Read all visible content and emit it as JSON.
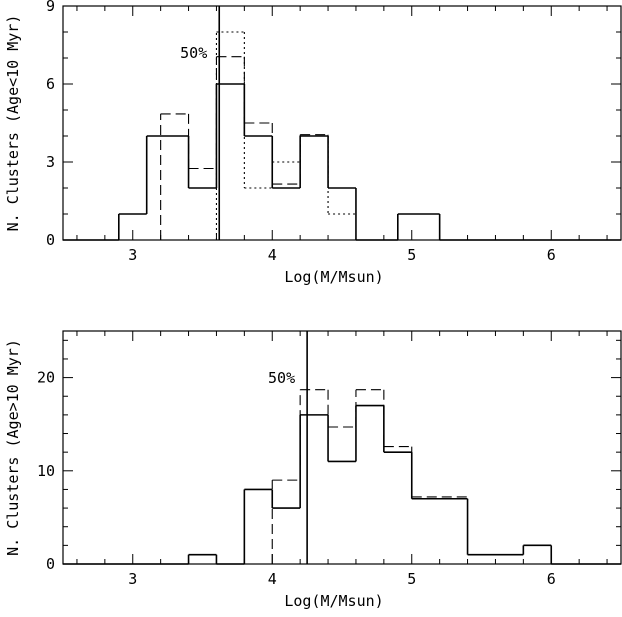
{
  "chart_data": [
    {
      "type": "histogram",
      "xlabel": "Log(M/Msun)",
      "ylabel": "N. Clusters (Age<10 Myr)",
      "xlim": [
        2.5,
        6.5
      ],
      "ylim": [
        0,
        9
      ],
      "x_ticks": [
        3,
        4,
        5,
        6
      ],
      "y_ticks": [
        0,
        3,
        6,
        9
      ],
      "bin_width": 0.2,
      "series": [
        {
          "style": "solid",
          "bins": [
            [
              2.5,
              2.9,
              0
            ],
            [
              2.9,
              3.1,
              1
            ],
            [
              3.1,
              3.4,
              4
            ],
            [
              3.4,
              3.6,
              2
            ],
            [
              3.6,
              3.8,
              6
            ],
            [
              3.8,
              4.0,
              4
            ],
            [
              4.0,
              4.2,
              2
            ],
            [
              4.2,
              4.4,
              4
            ],
            [
              4.4,
              4.6,
              2
            ],
            [
              4.6,
              4.9,
              0
            ],
            [
              4.9,
              5.2,
              1
            ],
            [
              5.2,
              6.5,
              0
            ]
          ]
        },
        {
          "style": "dashed",
          "bins": [
            [
              3.2,
              3.4,
              4.85
            ],
            [
              3.4,
              3.6,
              2.75
            ],
            [
              3.6,
              3.8,
              7.05
            ],
            [
              3.8,
              4.0,
              4.5
            ],
            [
              4.0,
              4.2,
              2.15
            ],
            [
              4.2,
              4.4,
              4.05
            ],
            [
              4.4,
              4.6,
              2.0
            ]
          ]
        },
        {
          "style": "dotted",
          "bins": [
            [
              3.6,
              3.8,
              8.0
            ],
            [
              3.8,
              4.0,
              2.0
            ],
            [
              4.0,
              4.2,
              3.0
            ],
            [
              4.2,
              4.4,
              4.0
            ],
            [
              4.4,
              4.6,
              1.0
            ]
          ]
        }
      ],
      "vline": {
        "x": 3.62,
        "label": "50%"
      }
    },
    {
      "type": "histogram",
      "xlabel": "Log(M/Msun)",
      "ylabel": "N. Clusters (Age>10 Myr)",
      "xlim": [
        2.5,
        6.5
      ],
      "ylim": [
        0,
        25
      ],
      "x_ticks": [
        3,
        4,
        5,
        6
      ],
      "y_ticks": [
        0,
        10,
        20
      ],
      "bin_width": 0.2,
      "series": [
        {
          "style": "solid",
          "bins": [
            [
              2.5,
              3.4,
              0
            ],
            [
              3.4,
              3.6,
              1
            ],
            [
              3.6,
              3.8,
              0
            ],
            [
              3.8,
              4.0,
              8
            ],
            [
              4.0,
              4.2,
              6
            ],
            [
              4.2,
              4.4,
              16
            ],
            [
              4.4,
              4.6,
              11
            ],
            [
              4.6,
              4.8,
              17
            ],
            [
              4.8,
              5.0,
              12
            ],
            [
              5.0,
              5.4,
              7
            ],
            [
              5.4,
              5.8,
              1
            ],
            [
              5.8,
              6.0,
              2
            ],
            [
              6.0,
              6.5,
              0
            ]
          ]
        },
        {
          "style": "dashed",
          "bins": [
            [
              4.0,
              4.2,
              9.0
            ],
            [
              4.2,
              4.4,
              18.7
            ],
            [
              4.4,
              4.6,
              14.7
            ],
            [
              4.6,
              4.8,
              18.7
            ],
            [
              4.8,
              5.0,
              12.6
            ],
            [
              5.0,
              5.4,
              7.2
            ]
          ]
        }
      ],
      "vline": {
        "x": 4.25,
        "label": "50%"
      }
    }
  ]
}
